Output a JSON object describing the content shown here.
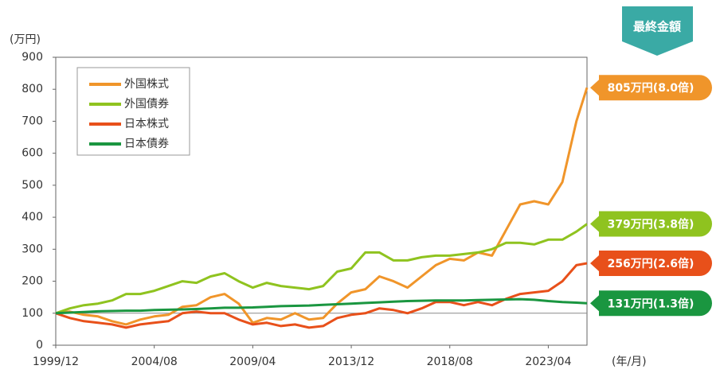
{
  "chart_data": {
    "type": "line",
    "header": "最終金額",
    "y_unit_label": "(万円)",
    "x_unit_label": "(年/月)",
    "x": [
      "1999/12",
      "2000/08",
      "2001/04",
      "2001/12",
      "2002/08",
      "2003/04",
      "2003/12",
      "2004/08",
      "2005/04",
      "2005/12",
      "2006/08",
      "2007/04",
      "2007/12",
      "2008/08",
      "2009/04",
      "2009/12",
      "2010/08",
      "2011/04",
      "2011/12",
      "2012/08",
      "2013/04",
      "2013/12",
      "2014/08",
      "2015/04",
      "2015/12",
      "2016/08",
      "2017/04",
      "2017/12",
      "2018/08",
      "2019/04",
      "2019/12",
      "2020/08",
      "2021/04",
      "2021/12",
      "2022/08",
      "2023/04",
      "2023/12",
      "2024/08",
      "2025/02"
    ],
    "xlim": [
      "1999/12",
      "2025/02"
    ],
    "xticks": [
      "1999/12",
      "2004/08",
      "2009/04",
      "2013/12",
      "2018/08",
      "2023/04"
    ],
    "ylim": [
      0,
      900
    ],
    "yticks": [
      0,
      100,
      200,
      300,
      400,
      500,
      600,
      700,
      800,
      900
    ],
    "reference_line": 100,
    "legend": "top-left",
    "series": [
      {
        "name": "外国株式",
        "color": "#f0952a",
        "end_label": "805万円(8.0倍)",
        "values": [
          100,
          105,
          95,
          90,
          75,
          65,
          80,
          90,
          95,
          120,
          125,
          150,
          160,
          130,
          70,
          85,
          80,
          100,
          80,
          85,
          130,
          165,
          175,
          215,
          200,
          180,
          215,
          250,
          270,
          265,
          290,
          280,
          360,
          440,
          450,
          440,
          510,
          700,
          805
        ]
      },
      {
        "name": "外国債券",
        "color": "#8fc31f",
        "end_label": "379万円(3.8倍)",
        "values": [
          100,
          115,
          125,
          130,
          140,
          160,
          160,
          170,
          185,
          200,
          195,
          215,
          225,
          200,
          180,
          195,
          185,
          180,
          175,
          185,
          230,
          240,
          290,
          290,
          265,
          265,
          275,
          280,
          280,
          285,
          290,
          300,
          320,
          320,
          315,
          330,
          330,
          355,
          379
        ]
      },
      {
        "name": "日本株式",
        "color": "#e8501a",
        "end_label": "256万円(2.6倍)",
        "values": [
          100,
          85,
          75,
          70,
          65,
          55,
          65,
          70,
          75,
          100,
          105,
          100,
          100,
          80,
          65,
          70,
          60,
          65,
          55,
          60,
          85,
          95,
          100,
          115,
          110,
          100,
          115,
          135,
          135,
          125,
          135,
          125,
          145,
          160,
          165,
          170,
          200,
          250,
          256
        ]
      },
      {
        "name": "日本債券",
        "color": "#1a9640",
        "end_label": "131万円(1.3倍)",
        "values": [
          100,
          102,
          104,
          106,
          107,
          108,
          108,
          110,
          111,
          112,
          113,
          115,
          117,
          117,
          118,
          120,
          122,
          123,
          124,
          126,
          128,
          130,
          132,
          134,
          136,
          138,
          139,
          140,
          140,
          140,
          141,
          142,
          143,
          144,
          142,
          138,
          135,
          133,
          131
        ]
      }
    ]
  }
}
